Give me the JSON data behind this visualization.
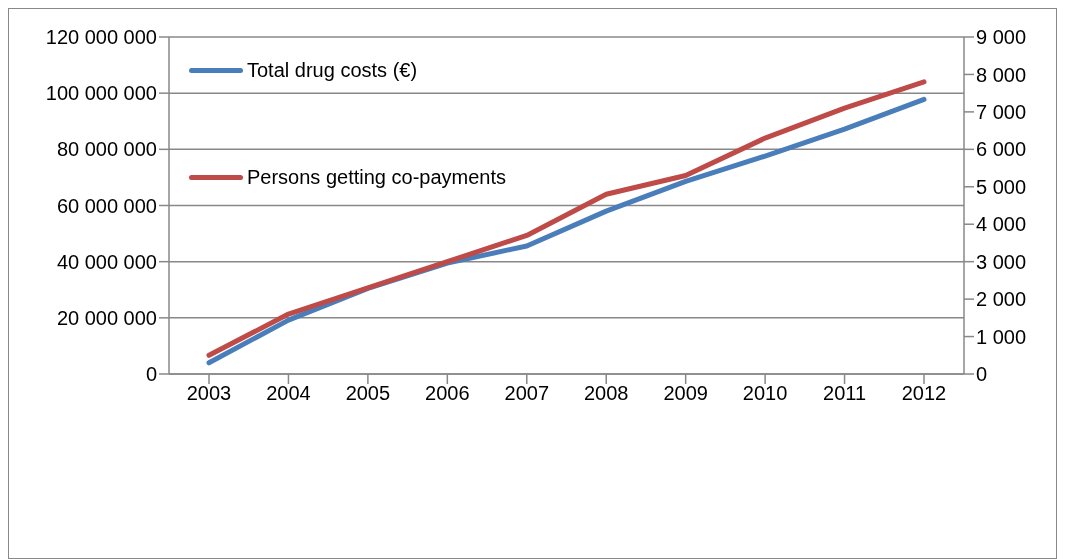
{
  "chart_data": {
    "type": "line",
    "categories": [
      "2003",
      "2004",
      "2005",
      "2006",
      "2007",
      "2008",
      "2009",
      "2010",
      "2011",
      "2012"
    ],
    "series": [
      {
        "name": "Total drug costs (€)",
        "color": "#4a7ebb",
        "values": [
          4000000,
          19200000,
          30500000,
          39500000,
          45600000,
          58000000,
          68600000,
          77600000,
          87200000,
          97800000
        ]
      },
      {
        "name": "Persons getting co-payments",
        "color": "#be4b48",
        "axis": "y2",
        "values": [
          500,
          1600,
          2300,
          3000,
          3700,
          4800,
          5300,
          6300,
          7100,
          7800
        ]
      }
    ],
    "ylim": [
      0,
      120000000
    ],
    "yticks": [
      {
        "value": 0,
        "label": "0"
      },
      {
        "value": 20000000,
        "label": "20 000 000"
      },
      {
        "value": 40000000,
        "label": "40 000 000"
      },
      {
        "value": 60000000,
        "label": "60 000 000"
      },
      {
        "value": 80000000,
        "label": "80 000 000"
      },
      {
        "value": 100000000,
        "label": "100 000 000"
      },
      {
        "value": 120000000,
        "label": "120 000 000"
      }
    ],
    "y2lim": [
      0,
      9000
    ],
    "y2ticks": [
      {
        "value": 0,
        "label": "0"
      },
      {
        "value": 1000,
        "label": "1 000"
      },
      {
        "value": 2000,
        "label": "2 000"
      },
      {
        "value": 3000,
        "label": "3 000"
      },
      {
        "value": 4000,
        "label": "4 000"
      },
      {
        "value": 5000,
        "label": "5 000"
      },
      {
        "value": 6000,
        "label": "6 000"
      },
      {
        "value": 7000,
        "label": "7 000"
      },
      {
        "value": 8000,
        "label": "8 000"
      },
      {
        "value": 9000,
        "label": "9 000"
      }
    ],
    "grid": "y",
    "legend": "top left",
    "marker": "none",
    "line_style": "solid"
  }
}
